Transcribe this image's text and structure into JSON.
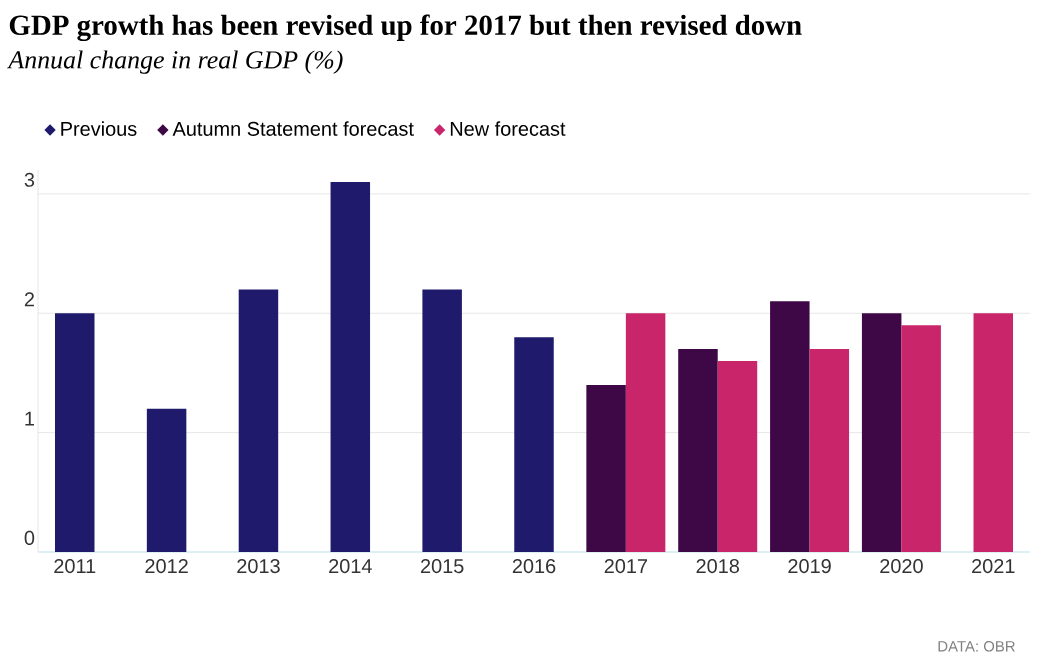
{
  "chart_data": {
    "type": "bar",
    "title": "GDP growth has been revised up for 2017 but then revised down",
    "subtitle": "Annual change in real GDP (%)",
    "categories": [
      "2011",
      "2012",
      "2013",
      "2014",
      "2015",
      "2016",
      "2017",
      "2018",
      "2019",
      "2020",
      "2021"
    ],
    "series": [
      {
        "name": "Previous",
        "color": "#1f1a6b",
        "values": [
          2.0,
          1.2,
          2.2,
          3.1,
          2.2,
          1.8,
          null,
          null,
          null,
          null,
          null
        ]
      },
      {
        "name": "Autumn Statement forecast",
        "color": "#3d0845",
        "values": [
          null,
          null,
          null,
          null,
          null,
          null,
          1.4,
          1.7,
          2.1,
          2.0,
          null
        ]
      },
      {
        "name": "New forecast",
        "color": "#c8256a",
        "values": [
          null,
          null,
          null,
          null,
          null,
          null,
          2.0,
          1.6,
          1.7,
          1.9,
          2.0
        ]
      }
    ],
    "ylim": [
      0,
      3.2
    ],
    "yticks": [
      0,
      1,
      2,
      3
    ],
    "grid": "y",
    "legend": "top left",
    "annotations": [
      "DATA: OBR"
    ]
  }
}
